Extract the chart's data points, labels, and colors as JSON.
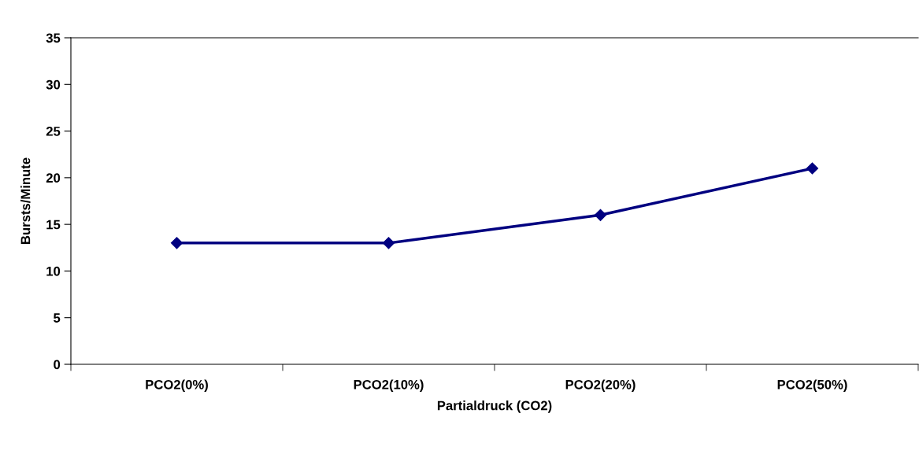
{
  "chart_data": {
    "type": "line",
    "xlabel": "Partialdruck (CO2)",
    "ylabel": "Bursts/Minute",
    "categories": [
      "PCO2(0%)",
      "PCO2(10%)",
      "PCO2(20%)",
      "PCO2(50%)"
    ],
    "series": [
      {
        "color": "#000080",
        "values": [
          13,
          13,
          16,
          21
        ]
      }
    ],
    "ylim": [
      0,
      35
    ],
    "yticks": [
      0,
      5,
      10,
      15,
      20,
      25,
      30,
      35
    ],
    "marker": "diamond",
    "line_style": "solid",
    "grid": false,
    "legend": false
  }
}
